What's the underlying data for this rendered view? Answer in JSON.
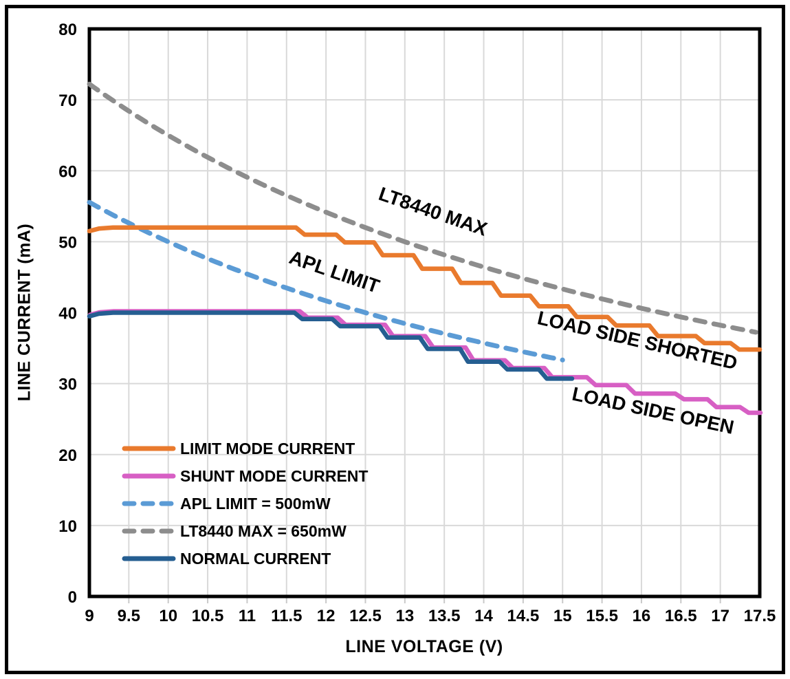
{
  "chart_data": {
    "type": "line",
    "title": "",
    "xlabel": "LINE VOLTAGE (V)",
    "ylabel": "LINE CURRENT (mA)",
    "xlim": [
      9,
      17.5
    ],
    "ylim": [
      0,
      80
    ],
    "grid": true,
    "x_tick_labels": [
      "9",
      "9.5",
      "10",
      "10.5",
      "11",
      "11.5",
      "12",
      "12.5",
      "13",
      "13.5",
      "14",
      "14.5",
      "15",
      "15.5",
      "16",
      "16.5",
      "17",
      "17.5"
    ],
    "y_tick_labels": [
      "0",
      "10",
      "20",
      "30",
      "40",
      "50",
      "60",
      "70",
      "80"
    ],
    "legend_position": "inside-bottom-left",
    "series": [
      {
        "id": "limit_mode",
        "name": "LIMIT MODE CURRENT",
        "type": "steps",
        "color": "#E97A2D",
        "dashed": false,
        "points": [
          [
            9,
            51.5
          ],
          [
            9.12,
            51.85
          ],
          [
            9.3,
            52
          ],
          [
            11.62,
            52
          ],
          [
            11.73,
            51
          ],
          [
            12.13,
            51
          ],
          [
            12.24,
            49.9
          ],
          [
            12.61,
            49.9
          ],
          [
            12.72,
            48.1
          ],
          [
            13.11,
            48.1
          ],
          [
            13.22,
            46.2
          ],
          [
            13.6,
            46.2
          ],
          [
            13.71,
            44.2
          ],
          [
            14.11,
            44.2
          ],
          [
            14.22,
            42.4
          ],
          [
            14.59,
            42.4
          ],
          [
            14.7,
            40.9
          ],
          [
            15.07,
            40.9
          ],
          [
            15.18,
            39.4
          ],
          [
            15.57,
            39.4
          ],
          [
            15.68,
            38.2
          ],
          [
            16.1,
            38.2
          ],
          [
            16.21,
            36.7
          ],
          [
            16.69,
            36.7
          ],
          [
            16.8,
            35.7
          ],
          [
            17.13,
            35.7
          ],
          [
            17.24,
            34.8
          ],
          [
            17.5,
            34.8
          ]
        ]
      },
      {
        "id": "shunt_mode",
        "name": "SHUNT MODE CURRENT",
        "type": "steps",
        "color": "#D75FC4",
        "dashed": false,
        "points": [
          [
            9,
            39.5
          ],
          [
            9.12,
            39.85
          ],
          [
            9.3,
            40
          ],
          [
            11.66,
            40
          ],
          [
            11.76,
            39.1
          ],
          [
            12.14,
            39.1
          ],
          [
            12.24,
            38.1
          ],
          [
            12.74,
            38.1
          ],
          [
            12.84,
            36.5
          ],
          [
            13.25,
            36.5
          ],
          [
            13.35,
            34.9
          ],
          [
            13.76,
            34.9
          ],
          [
            13.86,
            33.1
          ],
          [
            14.26,
            33.1
          ],
          [
            14.36,
            32
          ],
          [
            14.76,
            32
          ],
          [
            14.86,
            30.7
          ],
          [
            15.3,
            30.7
          ],
          [
            15.41,
            29.6
          ],
          [
            15.8,
            29.6
          ],
          [
            15.91,
            28.4
          ],
          [
            16.42,
            28.4
          ],
          [
            16.53,
            27.6
          ],
          [
            16.83,
            27.6
          ],
          [
            16.94,
            26.5
          ],
          [
            17.24,
            26.5
          ],
          [
            17.35,
            25.7
          ],
          [
            17.5,
            25.7
          ]
        ]
      },
      {
        "id": "apl_limit",
        "name": "APL LIMIT = 500mW",
        "type": "power",
        "power_mw": 500,
        "v_range": [
          9,
          15
        ],
        "color": "#5B9BD5",
        "dashed": true
      },
      {
        "id": "lt8440_max",
        "name": "LT8440 MAX = 650mW",
        "type": "power",
        "power_mw": 650,
        "v_range": [
          9,
          17.45
        ],
        "color": "#8D8D8D",
        "dashed": true
      },
      {
        "id": "normal",
        "name": "NORMAL CURRENT",
        "type": "steps",
        "color": "#255E91",
        "dashed": false,
        "points": [
          [
            9,
            39.5
          ],
          [
            9.12,
            39.85
          ],
          [
            9.3,
            40
          ],
          [
            11.6,
            40
          ],
          [
            11.7,
            39.1
          ],
          [
            12.08,
            39.1
          ],
          [
            12.18,
            38.1
          ],
          [
            12.68,
            38.1
          ],
          [
            12.78,
            36.5
          ],
          [
            13.19,
            36.5
          ],
          [
            13.29,
            34.9
          ],
          [
            13.7,
            34.9
          ],
          [
            13.8,
            33.1
          ],
          [
            14.2,
            33.1
          ],
          [
            14.3,
            32
          ],
          [
            14.7,
            32
          ],
          [
            14.8,
            30.7
          ],
          [
            15.12,
            30.7
          ]
        ]
      }
    ],
    "annotations": [
      {
        "text": "LT8440 MAX",
        "v": 13.33,
        "i": 53.4,
        "rotation_deg": 19
      },
      {
        "text": "APL LIMIT",
        "v": 12.08,
        "i": 44.9,
        "rotation_deg": 19
      },
      {
        "text": "LOAD SIDE SHORTED",
        "v": 15.93,
        "i": 35.2,
        "rotation_deg": 13
      },
      {
        "text": "LOAD SIDE OPEN",
        "v": 16.13,
        "i": 25.3,
        "rotation_deg": 12
      }
    ]
  },
  "colors": {
    "grid": "#D9D9D9",
    "plot_border": "#000000",
    "tick_stub": "#C9C9C9",
    "text": "#000000",
    "background": "#FFFFFF"
  }
}
